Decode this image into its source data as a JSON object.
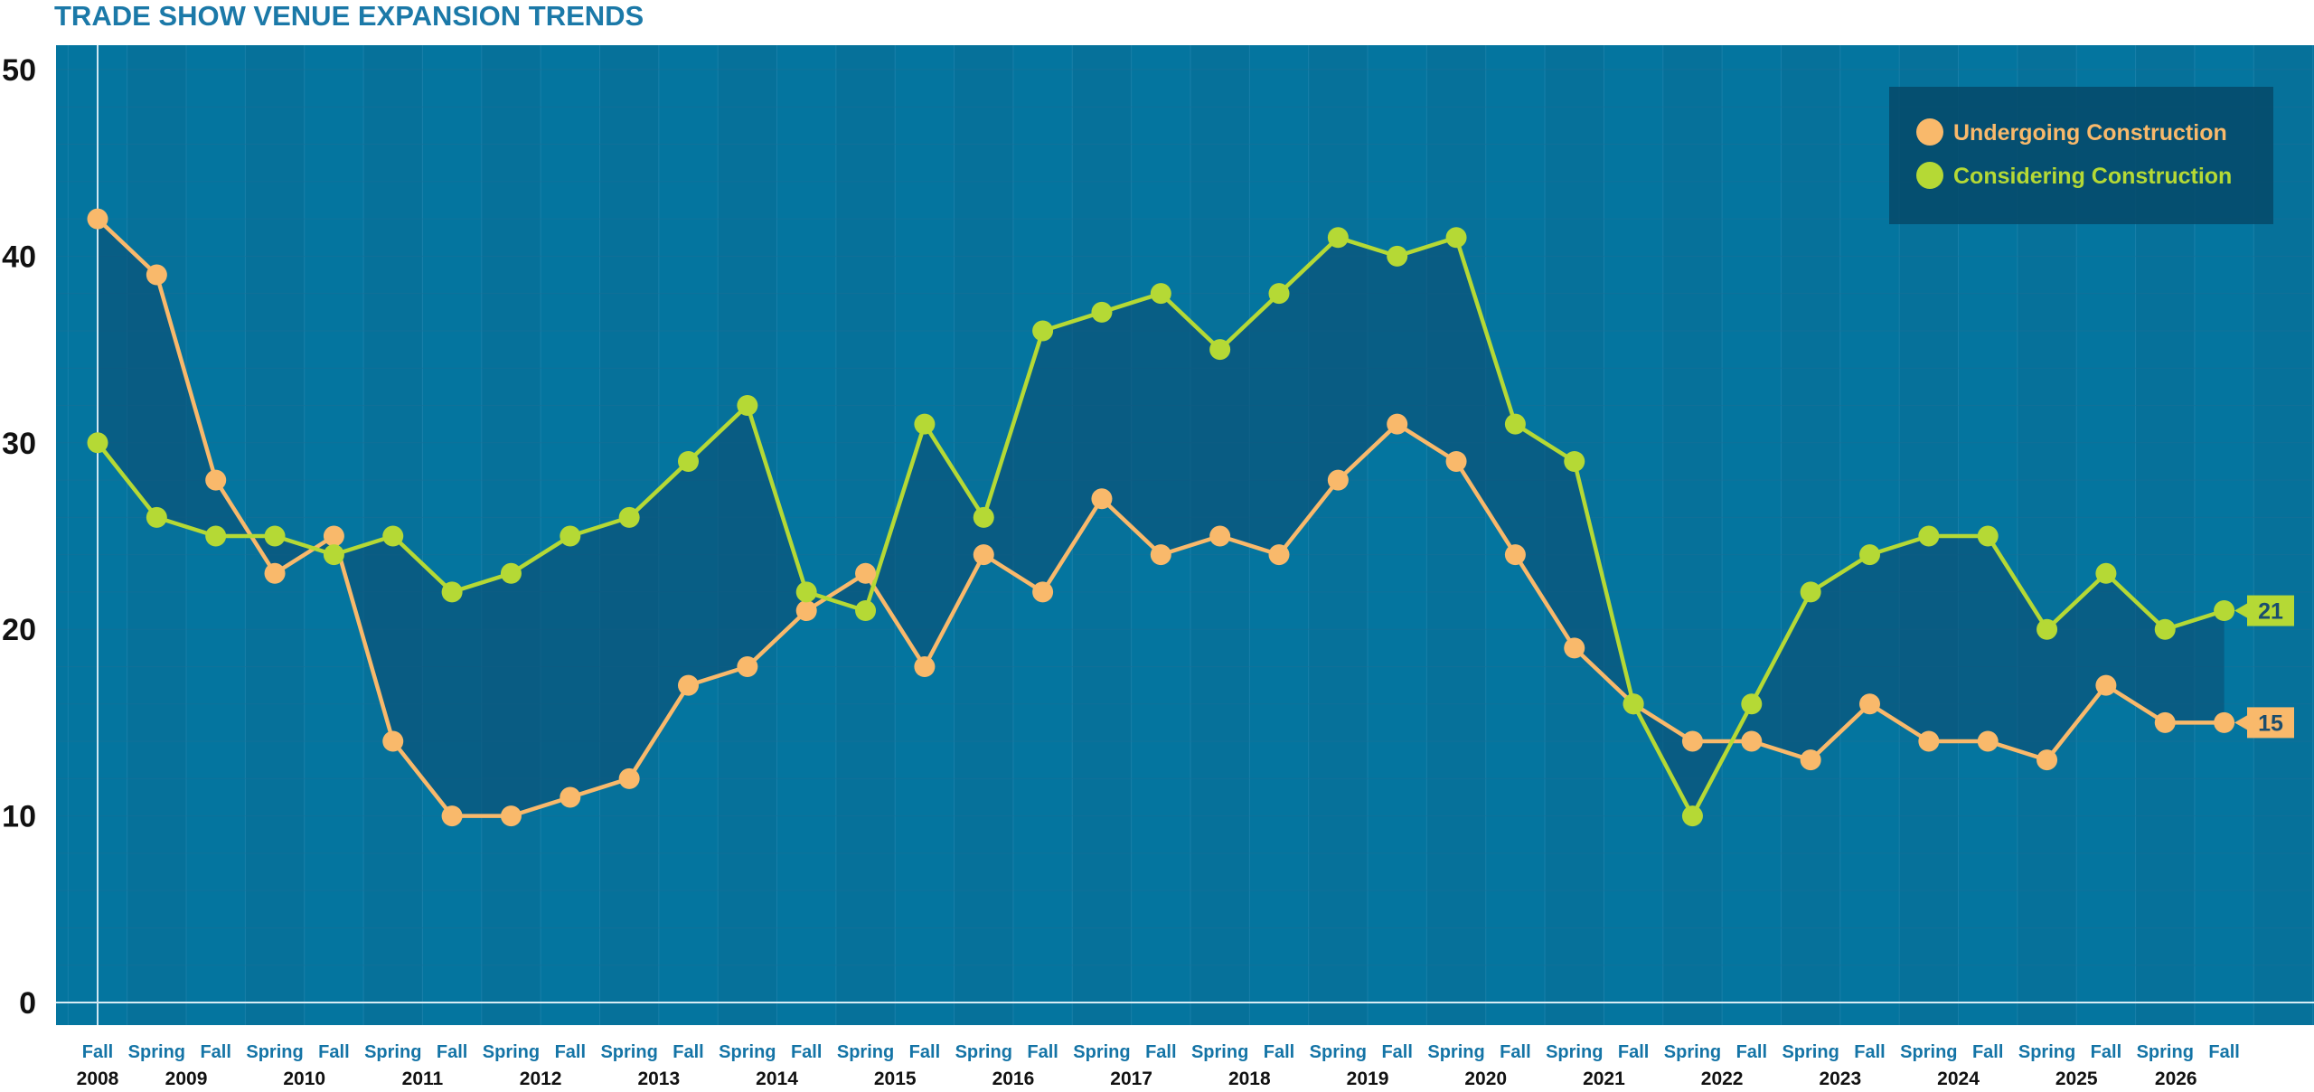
{
  "chart_data": {
    "type": "line",
    "title": "TRADE SHOW VENUE EXPANSION TRENDS",
    "ylim": [
      0,
      50
    ],
    "yticks": [
      "0",
      "10",
      "20",
      "30",
      "40",
      "50"
    ],
    "x_season_labels": [
      "Fall",
      "Spring",
      "Fall",
      "Spring",
      "Fall",
      "Spring",
      "Fall",
      "Spring",
      "Fall",
      "Spring",
      "Fall",
      "Spring",
      "Fall",
      "Spring",
      "Fall",
      "Spring",
      "Fall",
      "Spring",
      "Fall",
      "Spring",
      "Fall",
      "Spring",
      "Fall",
      "Spring",
      "Fall",
      "Spring",
      "Fall",
      "Spring",
      "Fall",
      "Spring",
      "Fall",
      "Spring",
      "Fall",
      "Spring",
      "Fall",
      "Spring",
      "Fall"
    ],
    "x_year_labels": [
      "2008",
      "2009",
      "2010",
      "2011",
      "2012",
      "2013",
      "2014",
      "2015",
      "2016",
      "2017",
      "2018",
      "2019",
      "2020",
      "2021",
      "2022",
      "2023",
      "2024",
      "2025",
      "2026"
    ],
    "series": [
      {
        "name": "Undergoing Construction",
        "color": "#f9b96b",
        "values": [
          42,
          39,
          28,
          23,
          25,
          14,
          10,
          10,
          11,
          12,
          17,
          18,
          21,
          23,
          18,
          24,
          22,
          27,
          24,
          25,
          24,
          28,
          31,
          29,
          24,
          19,
          16,
          14,
          14,
          13,
          16,
          14,
          14,
          13,
          17,
          15,
          15
        ],
        "end_label": "15"
      },
      {
        "name": "Considering Construction",
        "color": "#b5d935",
        "values": [
          30,
          26,
          25,
          25,
          24,
          25,
          22,
          23,
          25,
          26,
          29,
          32,
          22,
          21,
          31,
          26,
          36,
          37,
          38,
          35,
          38,
          41,
          40,
          41,
          31,
          29,
          16,
          10,
          16,
          22,
          24,
          25,
          25,
          20,
          23,
          20,
          21
        ],
        "end_label": "21"
      }
    ],
    "legend_position": "top-right",
    "grid": true
  },
  "colors": {
    "background": "#04759f",
    "stripe": "#0a6d96",
    "shade_fill": "#0b4f74",
    "title": "#1b79a8",
    "legend_box": "#064968"
  }
}
